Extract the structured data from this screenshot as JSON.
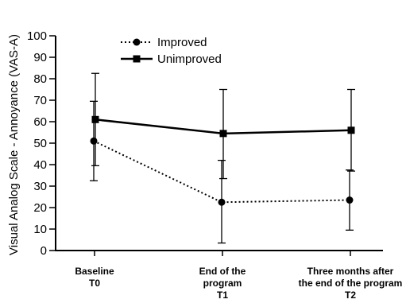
{
  "chart_data": {
    "type": "line",
    "ylabel": "Visual Analog Scale -  Annoyance (VAS-A)",
    "xlabel": "",
    "ylim": [
      0,
      100
    ],
    "yticks": [
      0,
      10,
      20,
      30,
      40,
      50,
      60,
      70,
      80,
      90,
      100
    ],
    "categories": [
      [
        "Baseline",
        "T0"
      ],
      [
        "End of the",
        "program",
        "T1"
      ],
      [
        "Three months after",
        "the end of the program",
        "T2"
      ]
    ],
    "legend_position": "top-left",
    "grid": false,
    "series": [
      {
        "name": "Improved",
        "style": "dotted",
        "marker": "circle",
        "values": [
          51,
          22.5,
          23.5
        ],
        "err_low": [
          32.5,
          3.5,
          9.5
        ],
        "err_high": [
          69.5,
          42,
          37.5
        ]
      },
      {
        "name": "Unimproved",
        "style": "solid",
        "marker": "square",
        "values": [
          61,
          54.5,
          56
        ],
        "err_low": [
          39.5,
          33.5,
          37
        ],
        "err_high": [
          82.5,
          75,
          75
        ]
      }
    ]
  },
  "colors": {
    "ink": "#000000",
    "background": "#ffffff"
  }
}
